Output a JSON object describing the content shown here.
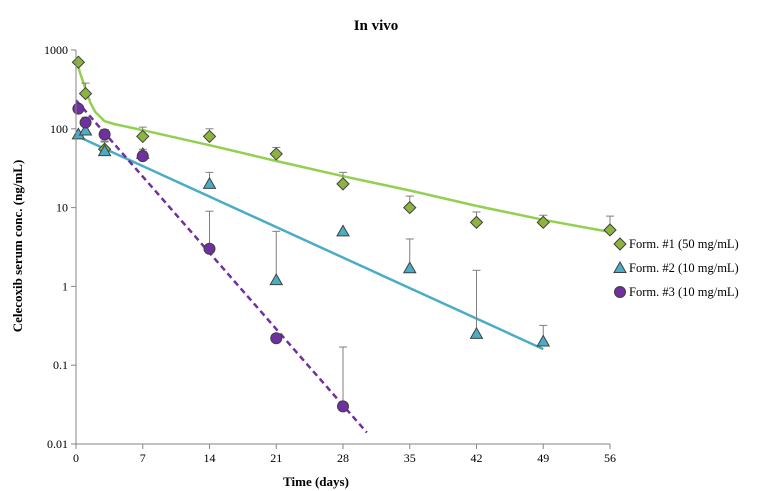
{
  "chart_data": {
    "type": "scatter",
    "title": "In vivo",
    "xlabel": "Time (days)",
    "ylabel": "Celecoxib serum conc. (ng/mL)",
    "x_scale": "linear",
    "y_scale": "log",
    "xlim": [
      0,
      56
    ],
    "ylim": [
      0.01,
      1000
    ],
    "x_ticks": [
      0,
      7,
      14,
      21,
      28,
      35,
      42,
      49,
      56
    ],
    "x_tick_labels": [
      "0",
      "7",
      "14",
      "21",
      "28",
      "35",
      "42",
      "49",
      "56"
    ],
    "y_ticks": [
      0.01,
      0.1,
      1,
      10,
      100,
      1000
    ],
    "y_tick_labels": [
      "0.01",
      "0.1",
      "1",
      "10",
      "100",
      "1000"
    ],
    "grid": false,
    "legend_position": "right",
    "series": [
      {
        "name": "Form. #1 (50 mg/mL)",
        "marker": "diamond",
        "color": "#8DB43E",
        "line_color": "#92D050",
        "line_style": "solid",
        "x": [
          0.25,
          1,
          3,
          7,
          14,
          21,
          28,
          35,
          42,
          49,
          56
        ],
        "y": [
          700,
          280,
          55,
          80,
          80,
          48,
          20,
          10,
          6.5,
          6.5,
          5.2
        ],
        "error_upper": [
          null,
          380,
          70,
          105,
          100,
          58,
          28,
          14,
          8.8,
          8,
          7.8
        ],
        "fit": {
          "x": [
            0,
            0.5,
            1,
            1.5,
            2,
            3,
            4,
            7,
            14,
            21,
            28,
            35,
            42,
            49,
            56
          ],
          "y": [
            750,
            480,
            320,
            215,
            165,
            125,
            115,
            96,
            62,
            39,
            25,
            16.5,
            10.5,
            7.0,
            4.9
          ]
        }
      },
      {
        "name": "Form. #2 (10 mg/mL)",
        "marker": "triangle",
        "color": "#4BACC6",
        "line_color": "#4BACC6",
        "line_style": "solid",
        "x": [
          0.25,
          1,
          3,
          7,
          14,
          21,
          28,
          35,
          42,
          49
        ],
        "y": [
          85,
          95,
          52,
          48,
          20,
          1.2,
          5,
          1.7,
          0.25,
          0.2
        ],
        "error_upper": [
          null,
          115,
          68,
          55,
          28,
          5,
          null,
          4,
          1.6,
          0.32
        ],
        "fit": {
          "x": [
            0,
            49
          ],
          "y": [
            82,
            0.16
          ]
        }
      },
      {
        "name": "Form. #3 (10 mg/mL)",
        "marker": "circle",
        "color": "#7030A0",
        "line_color": "#7030A0",
        "line_style": "dashed",
        "x": [
          0.25,
          1,
          3,
          7,
          14,
          21,
          28
        ],
        "y": [
          180,
          120,
          85,
          45,
          3,
          0.22,
          0.03
        ],
        "error_upper": [
          null,
          140,
          98,
          52,
          9,
          null,
          0.17
        ],
        "fit": {
          "x": [
            0,
            30.5
          ],
          "y": [
            230,
            0.014
          ]
        }
      }
    ]
  }
}
